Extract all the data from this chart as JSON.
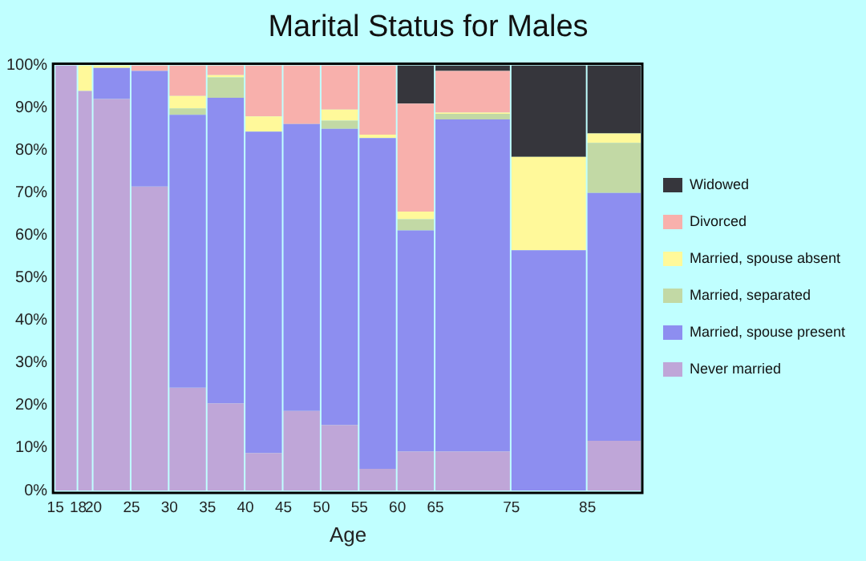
{
  "chart_data": {
    "type": "bar",
    "stacked": true,
    "title": "Marital Status for Males",
    "xlabel": "Age",
    "x": [
      16.5,
      19,
      22.5,
      27.5,
      32.5,
      37.5,
      42.5,
      47.5,
      52.5,
      57.5,
      62.5,
      70,
      80,
      88.5
    ],
    "xlim": [
      15,
      92
    ],
    "xticks": [
      15,
      18,
      20,
      25,
      30,
      35,
      40,
      45,
      50,
      55,
      60,
      65,
      75,
      85
    ],
    "ylim": [
      0,
      100
    ],
    "yticks": [
      {
        "value": 0,
        "label": "0%"
      },
      {
        "value": 10,
        "label": "10%"
      },
      {
        "value": 20,
        "label": "20%"
      },
      {
        "value": 30,
        "label": "30%"
      },
      {
        "value": 40,
        "label": "40%"
      },
      {
        "value": 50,
        "label": "50%"
      },
      {
        "value": 60,
        "label": "60%"
      },
      {
        "value": 70,
        "label": "70%"
      },
      {
        "value": 80,
        "label": "80%"
      },
      {
        "value": 90,
        "label": "90%"
      },
      {
        "value": 100,
        "label": "100%"
      }
    ],
    "grid": false,
    "legend": "right",
    "series": [
      {
        "name": "Never married",
        "color": "#bfa6d8",
        "values": [
          100,
          94,
          92.1,
          71.5,
          24.2,
          20.5,
          8.8,
          18.7,
          15.4,
          5.1,
          9.2,
          9.2,
          0,
          11.7
        ]
      },
      {
        "name": "Married, spouse present",
        "color": "#8d8ef0",
        "values": [
          0,
          0,
          7.3,
          27.2,
          64.2,
          71.9,
          75.6,
          67.5,
          69.7,
          77.8,
          52,
          78.1,
          56.5,
          58.3
        ]
      },
      {
        "name": "Married, separated",
        "color": "#c2d9a5",
        "values": [
          0,
          0,
          0,
          0,
          1.5,
          4.8,
          0,
          0,
          1.9,
          0,
          2.6,
          1.3,
          0,
          11.8
        ]
      },
      {
        "name": "Married, spouse absent",
        "color": "#fff99a",
        "values": [
          0,
          6,
          0.6,
          0,
          2.9,
          0.5,
          3.6,
          0,
          2.6,
          0.8,
          1.8,
          0.3,
          22,
          2.2
        ]
      },
      {
        "name": "Divorced",
        "color": "#f8b0ac",
        "values": [
          0,
          0,
          0,
          1.3,
          7.2,
          2.3,
          12,
          13.8,
          10.4,
          16.3,
          25.4,
          9.8,
          0,
          0
        ]
      },
      {
        "name": "Widowed",
        "color": "#36363c",
        "values": [
          0,
          0,
          0,
          0,
          0,
          0,
          0,
          0,
          0,
          0,
          9,
          1.3,
          21.5,
          16
        ]
      }
    ]
  }
}
